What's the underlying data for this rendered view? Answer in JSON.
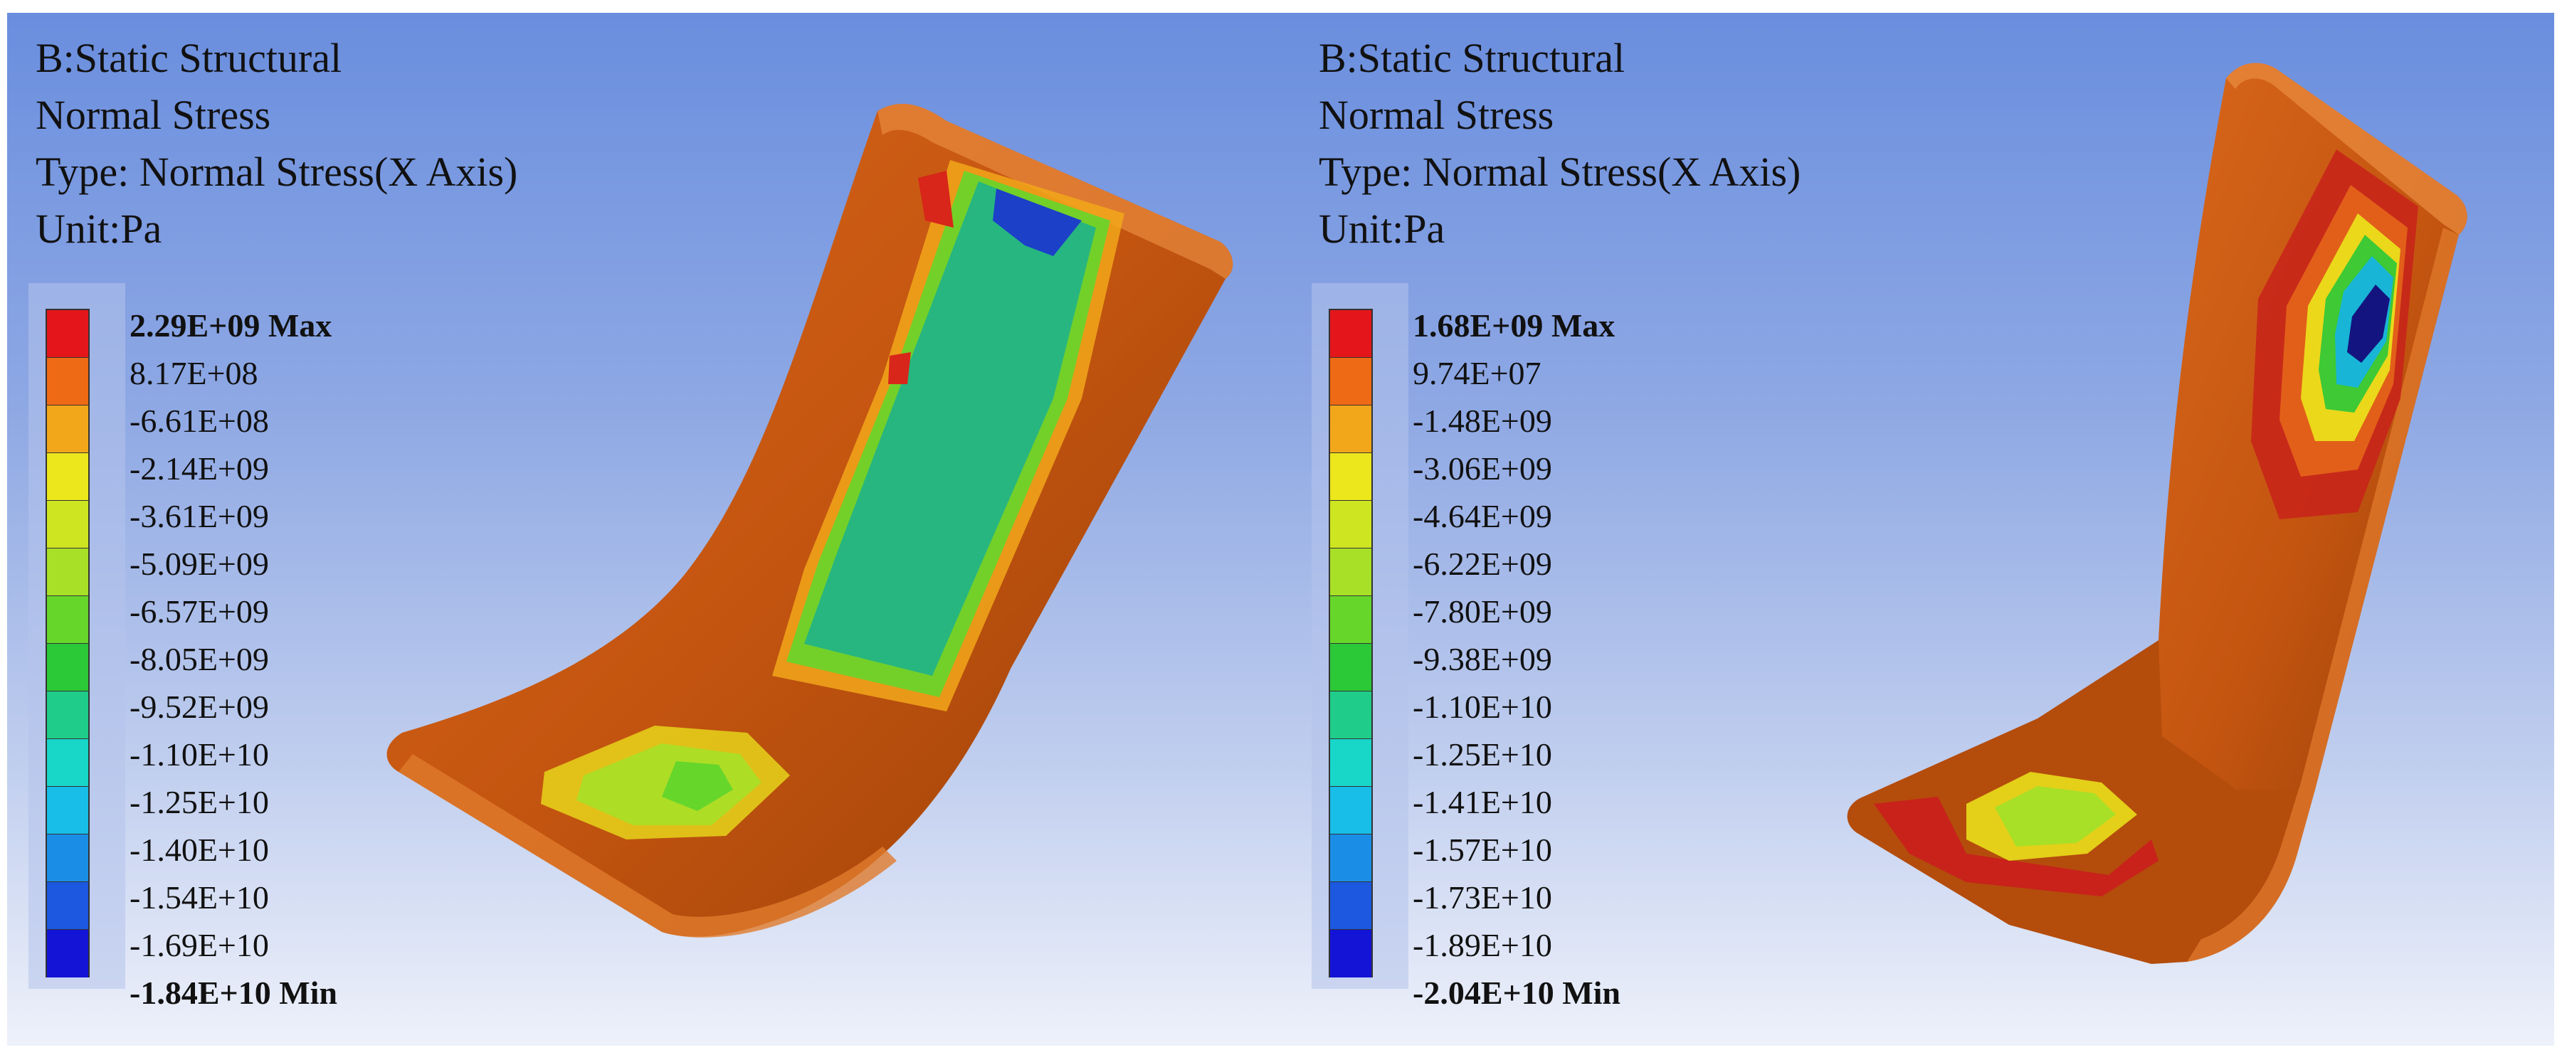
{
  "panels": [
    {
      "header": {
        "analysis": "B:Static Structural",
        "result": "Normal Stress",
        "type": "Type: Normal Stress(X Axis)",
        "unit": "Unit:Pa"
      },
      "legend": {
        "max_label": "2.29E+09 Max",
        "min_label": "-1.84E+10 Min",
        "levels": [
          "8.17E+08",
          "-6.61E+08",
          "-2.14E+09",
          "-3.61E+09",
          "-5.09E+09",
          "-6.57E+09",
          "-8.05E+09",
          "-9.52E+09",
          "-1.10E+10",
          "-1.25E+10",
          "-1.40E+10",
          "-1.54E+10",
          "-1.69E+10"
        ]
      }
    },
    {
      "header": {
        "analysis": "B:Static Structural",
        "result": "Normal Stress",
        "type": "Type: Normal Stress(X Axis)",
        "unit": "Unit:Pa"
      },
      "legend": {
        "max_label": "1.68E+09 Max",
        "min_label": "-2.04E+10 Min",
        "levels": [
          "9.74E+07",
          "-1.48E+09",
          "-3.06E+09",
          "-4.64E+09",
          "-6.22E+09",
          "-7.80E+09",
          "-9.38E+09",
          "-1.10E+10",
          "-1.25E+10",
          "-1.41E+10",
          "-1.57E+10",
          "-1.73E+10",
          "-1.89E+10"
        ]
      }
    }
  ],
  "colors": {
    "scale": [
      "#e4161c",
      "#ef6a14",
      "#f2a71a",
      "#ece61c",
      "#cde621",
      "#a8e027",
      "#66d62b",
      "#2bc838",
      "#1fcc8a",
      "#18d6c8",
      "#18bde8",
      "#1a8ee6",
      "#1c58e0",
      "#1414d6"
    ],
    "body": "#c8580f",
    "body_shadow": "#8a3a08"
  }
}
